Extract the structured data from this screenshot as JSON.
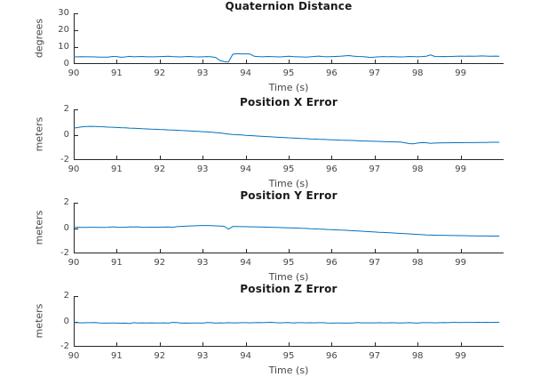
{
  "figure": {
    "background": "#ffffff",
    "axis_color": "#262626",
    "label_color": "#464646",
    "title_color": "#1a1a1a",
    "line_color": "#0072BD"
  },
  "chart_data": [
    {
      "type": "line",
      "title": "Quaternion Distance",
      "ylabel": "degrees",
      "xlabel": "Time (s)",
      "ylim": [
        0,
        30
      ],
      "yticks": [
        0,
        10,
        20,
        30
      ],
      "xlim": [
        90,
        100
      ],
      "xticks": [
        90,
        91,
        92,
        93,
        94,
        95,
        96,
        97,
        98,
        99
      ],
      "grid": false,
      "legend": null,
      "x_start": 90.0,
      "x_step": 0.1,
      "y": [
        4.2,
        4.3,
        4.35,
        4.3,
        4.25,
        4.2,
        4.1,
        4.05,
        4.1,
        4.45,
        4.4,
        4.0,
        4.2,
        4.55,
        4.3,
        4.4,
        4.5,
        4.3,
        4.25,
        4.3,
        4.4,
        4.5,
        4.6,
        4.4,
        4.3,
        4.2,
        4.4,
        4.5,
        4.3,
        4.2,
        4.3,
        4.4,
        4.3,
        3.9,
        2.1,
        1.4,
        1.2,
        5.8,
        6.1,
        6.0,
        6.0,
        5.9,
        4.6,
        4.4,
        4.3,
        4.5,
        4.4,
        4.3,
        4.2,
        4.4,
        4.6,
        4.4,
        4.3,
        4.2,
        4.1,
        4.3,
        4.5,
        4.7,
        4.4,
        4.3,
        4.4,
        4.5,
        4.6,
        4.8,
        5.0,
        4.7,
        4.5,
        4.4,
        4.2,
        3.9,
        4.1,
        4.3,
        4.4,
        4.3,
        4.4,
        4.3,
        4.2,
        4.3,
        4.5,
        4.4,
        4.3,
        4.4,
        4.6,
        5.4,
        4.5,
        4.4,
        4.5,
        4.4,
        4.5,
        4.6,
        4.7,
        4.6,
        4.7,
        4.6,
        4.7,
        4.8,
        4.7,
        4.6,
        4.7,
        4.6
      ]
    },
    {
      "type": "line",
      "title": "Position X Error",
      "ylabel": "meters",
      "xlabel": "Time (s)",
      "ylim": [
        -2,
        2
      ],
      "yticks": [
        -2,
        0,
        2
      ],
      "xlim": [
        90,
        100
      ],
      "xticks": [
        90,
        91,
        92,
        93,
        94,
        95,
        96,
        97,
        98,
        99
      ],
      "grid": false,
      "legend": null,
      "x_start": 90.0,
      "x_step": 0.1,
      "y": [
        0.52,
        0.57,
        0.62,
        0.65,
        0.66,
        0.65,
        0.63,
        0.62,
        0.6,
        0.59,
        0.57,
        0.55,
        0.54,
        0.52,
        0.51,
        0.49,
        0.47,
        0.46,
        0.44,
        0.43,
        0.41,
        0.4,
        0.38,
        0.37,
        0.35,
        0.33,
        0.32,
        0.3,
        0.28,
        0.26,
        0.24,
        0.22,
        0.2,
        0.17,
        0.14,
        0.1,
        0.05,
        0.02,
        0.0,
        -0.02,
        -0.05,
        -0.07,
        -0.09,
        -0.11,
        -0.13,
        -0.15,
        -0.17,
        -0.19,
        -0.21,
        -0.23,
        -0.25,
        -0.26,
        -0.28,
        -0.3,
        -0.31,
        -0.33,
        -0.34,
        -0.36,
        -0.37,
        -0.39,
        -0.4,
        -0.41,
        -0.43,
        -0.44,
        -0.45,
        -0.46,
        -0.47,
        -0.49,
        -0.5,
        -0.51,
        -0.52,
        -0.53,
        -0.54,
        -0.55,
        -0.56,
        -0.57,
        -0.58,
        -0.63,
        -0.7,
        -0.72,
        -0.66,
        -0.62,
        -0.63,
        -0.68,
        -0.66,
        -0.65,
        -0.64,
        -0.64,
        -0.63,
        -0.63,
        -0.63,
        -0.62,
        -0.62,
        -0.62,
        -0.61,
        -0.61,
        -0.61,
        -0.6,
        -0.6,
        -0.6
      ]
    },
    {
      "type": "line",
      "title": "Position Y Error",
      "ylabel": "meters",
      "xlabel": "Time (s)",
      "ylim": [
        -2,
        2
      ],
      "yticks": [
        -2,
        0,
        2
      ],
      "xlim": [
        90,
        100
      ],
      "xticks": [
        90,
        91,
        92,
        93,
        94,
        95,
        96,
        97,
        98,
        99
      ],
      "grid": false,
      "legend": null,
      "x_start": 90.0,
      "x_step": 0.1,
      "y": [
        0.05,
        0.06,
        0.05,
        0.05,
        0.06,
        0.06,
        0.05,
        0.05,
        0.06,
        0.1,
        0.07,
        0.06,
        0.06,
        0.1,
        0.09,
        0.1,
        0.06,
        0.06,
        0.07,
        0.07,
        0.07,
        0.08,
        0.09,
        0.06,
        0.11,
        0.13,
        0.15,
        0.17,
        0.18,
        0.19,
        0.2,
        0.2,
        0.19,
        0.18,
        0.16,
        0.14,
        -0.08,
        0.12,
        0.12,
        0.11,
        0.11,
        0.1,
        0.1,
        0.09,
        0.08,
        0.07,
        0.06,
        0.05,
        0.04,
        0.03,
        0.02,
        0.01,
        0.0,
        -0.02,
        -0.03,
        -0.05,
        -0.06,
        -0.08,
        -0.09,
        -0.11,
        -0.12,
        -0.14,
        -0.16,
        -0.17,
        -0.19,
        -0.21,
        -0.23,
        -0.25,
        -0.27,
        -0.29,
        -0.31,
        -0.33,
        -0.34,
        -0.36,
        -0.38,
        -0.4,
        -0.42,
        -0.44,
        -0.46,
        -0.48,
        -0.5,
        -0.52,
        -0.54,
        -0.55,
        -0.56,
        -0.57,
        -0.57,
        -0.58,
        -0.59,
        -0.59,
        -0.6,
        -0.6,
        -0.61,
        -0.61,
        -0.62,
        -0.62,
        -0.62,
        -0.63,
        -0.63,
        -0.63
      ]
    },
    {
      "type": "line",
      "title": "Position Z Error",
      "ylabel": "meters",
      "xlabel": "Time (s)",
      "ylim": [
        -2,
        2
      ],
      "yticks": [
        -2,
        0,
        2
      ],
      "xlim": [
        90,
        100
      ],
      "xticks": [
        90,
        91,
        92,
        93,
        94,
        95,
        96,
        97,
        98,
        99
      ],
      "grid": false,
      "legend": null,
      "x_start": 90.0,
      "x_step": 0.1,
      "y": [
        -0.1,
        -0.1,
        -0.11,
        -0.1,
        -0.1,
        -0.09,
        -0.12,
        -0.13,
        -0.13,
        -0.12,
        -0.13,
        -0.14,
        -0.13,
        -0.17,
        -0.1,
        -0.12,
        -0.11,
        -0.12,
        -0.11,
        -0.12,
        -0.12,
        -0.11,
        -0.13,
        -0.08,
        -0.09,
        -0.13,
        -0.12,
        -0.13,
        -0.12,
        -0.12,
        -0.13,
        -0.09,
        -0.1,
        -0.13,
        -0.11,
        -0.12,
        -0.1,
        -0.11,
        -0.11,
        -0.1,
        -0.1,
        -0.11,
        -0.1,
        -0.09,
        -0.1,
        -0.08,
        -0.07,
        -0.1,
        -0.11,
        -0.1,
        -0.09,
        -0.12,
        -0.1,
        -0.1,
        -0.11,
        -0.1,
        -0.11,
        -0.1,
        -0.1,
        -0.12,
        -0.13,
        -0.12,
        -0.12,
        -0.13,
        -0.12,
        -0.12,
        -0.09,
        -0.11,
        -0.11,
        -0.11,
        -0.11,
        -0.1,
        -0.11,
        -0.11,
        -0.1,
        -0.11,
        -0.12,
        -0.11,
        -0.1,
        -0.11,
        -0.13,
        -0.1,
        -0.1,
        -0.1,
        -0.11,
        -0.1,
        -0.09,
        -0.1,
        -0.08,
        -0.08,
        -0.09,
        -0.08,
        -0.08,
        -0.08,
        -0.07,
        -0.08,
        -0.07,
        -0.08,
        -0.07,
        -0.07
      ]
    }
  ]
}
